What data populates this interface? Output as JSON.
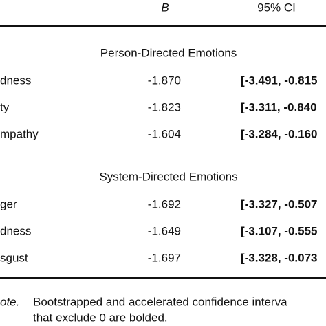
{
  "header": {
    "b": "B",
    "ci": "95% CI"
  },
  "sections": [
    {
      "title": "Person-Directed Emotions",
      "rows": [
        [
          "dness",
          "-1.870",
          "[-3.491, -0.815"
        ],
        [
          "ty",
          "-1.823",
          "[-3.311, -0.840"
        ],
        [
          "mpathy",
          "-1.604",
          "[-3.284, -0.160"
        ]
      ]
    },
    {
      "title": "System-Directed Emotions",
      "rows": [
        [
          "ger",
          "-1.692",
          "[-3.327, -0.507"
        ],
        [
          "dness",
          "-1.649",
          "[-3.107, -0.555"
        ],
        [
          "sgust",
          "-1.697",
          "[-3.328, -0.073"
        ]
      ]
    }
  ],
  "note": {
    "label": "ote.",
    "lines": [
      "Bootstrapped and accelerated confidence interva",
      "that exclude 0 are bolded."
    ]
  }
}
